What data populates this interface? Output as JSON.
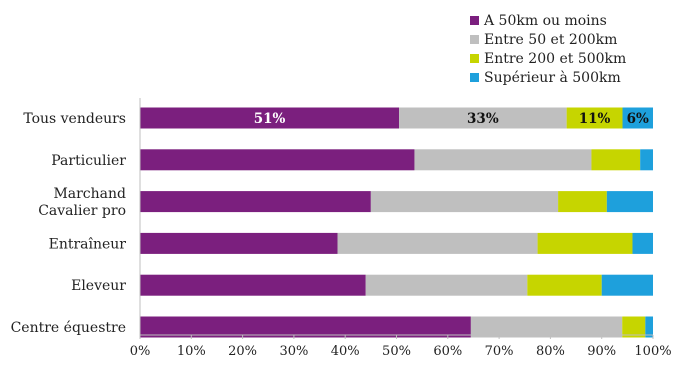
{
  "chart_data": {
    "type": "bar",
    "orientation": "horizontal",
    "stacked": true,
    "categories": [
      "Tous vendeurs",
      "Particulier",
      "Marchand\nCavalier pro",
      "Entraîneur",
      "Eleveur",
      "Centre équestre"
    ],
    "series": [
      {
        "name": "A 50km ou moins",
        "color": "#7b1f7e",
        "values": [
          51,
          53.5,
          45,
          38.5,
          44,
          64.5
        ]
      },
      {
        "name": "Entre 50 et 200km",
        "color": "#bfbfbf",
        "values": [
          33,
          34.5,
          36.5,
          39,
          31.5,
          29.5
        ]
      },
      {
        "name": "Entre 200 et 500km",
        "color": "#c6d500",
        "values": [
          11,
          9.5,
          9.5,
          18.5,
          14.5,
          4.5
        ]
      },
      {
        "name": "Supérieur à 500km",
        "color": "#1ea0dc",
        "values": [
          6,
          2.5,
          9,
          4,
          10,
          1.5
        ]
      }
    ],
    "data_labels": [
      {
        "category": 0,
        "series": 0,
        "text": "51%",
        "color": "#ffffff"
      },
      {
        "category": 0,
        "series": 1,
        "text": "33%",
        "color": "#111111"
      },
      {
        "category": 0,
        "series": 2,
        "text": "11%",
        "color": "#111111"
      },
      {
        "category": 0,
        "series": 3,
        "text": "6%",
        "color": "#111111"
      }
    ],
    "xlim": [
      0,
      100
    ],
    "xticks": [
      0,
      10,
      20,
      30,
      40,
      50,
      60,
      70,
      80,
      90,
      100
    ],
    "tick_suffix": "%",
    "grid": false,
    "legend_position": "top-right"
  }
}
